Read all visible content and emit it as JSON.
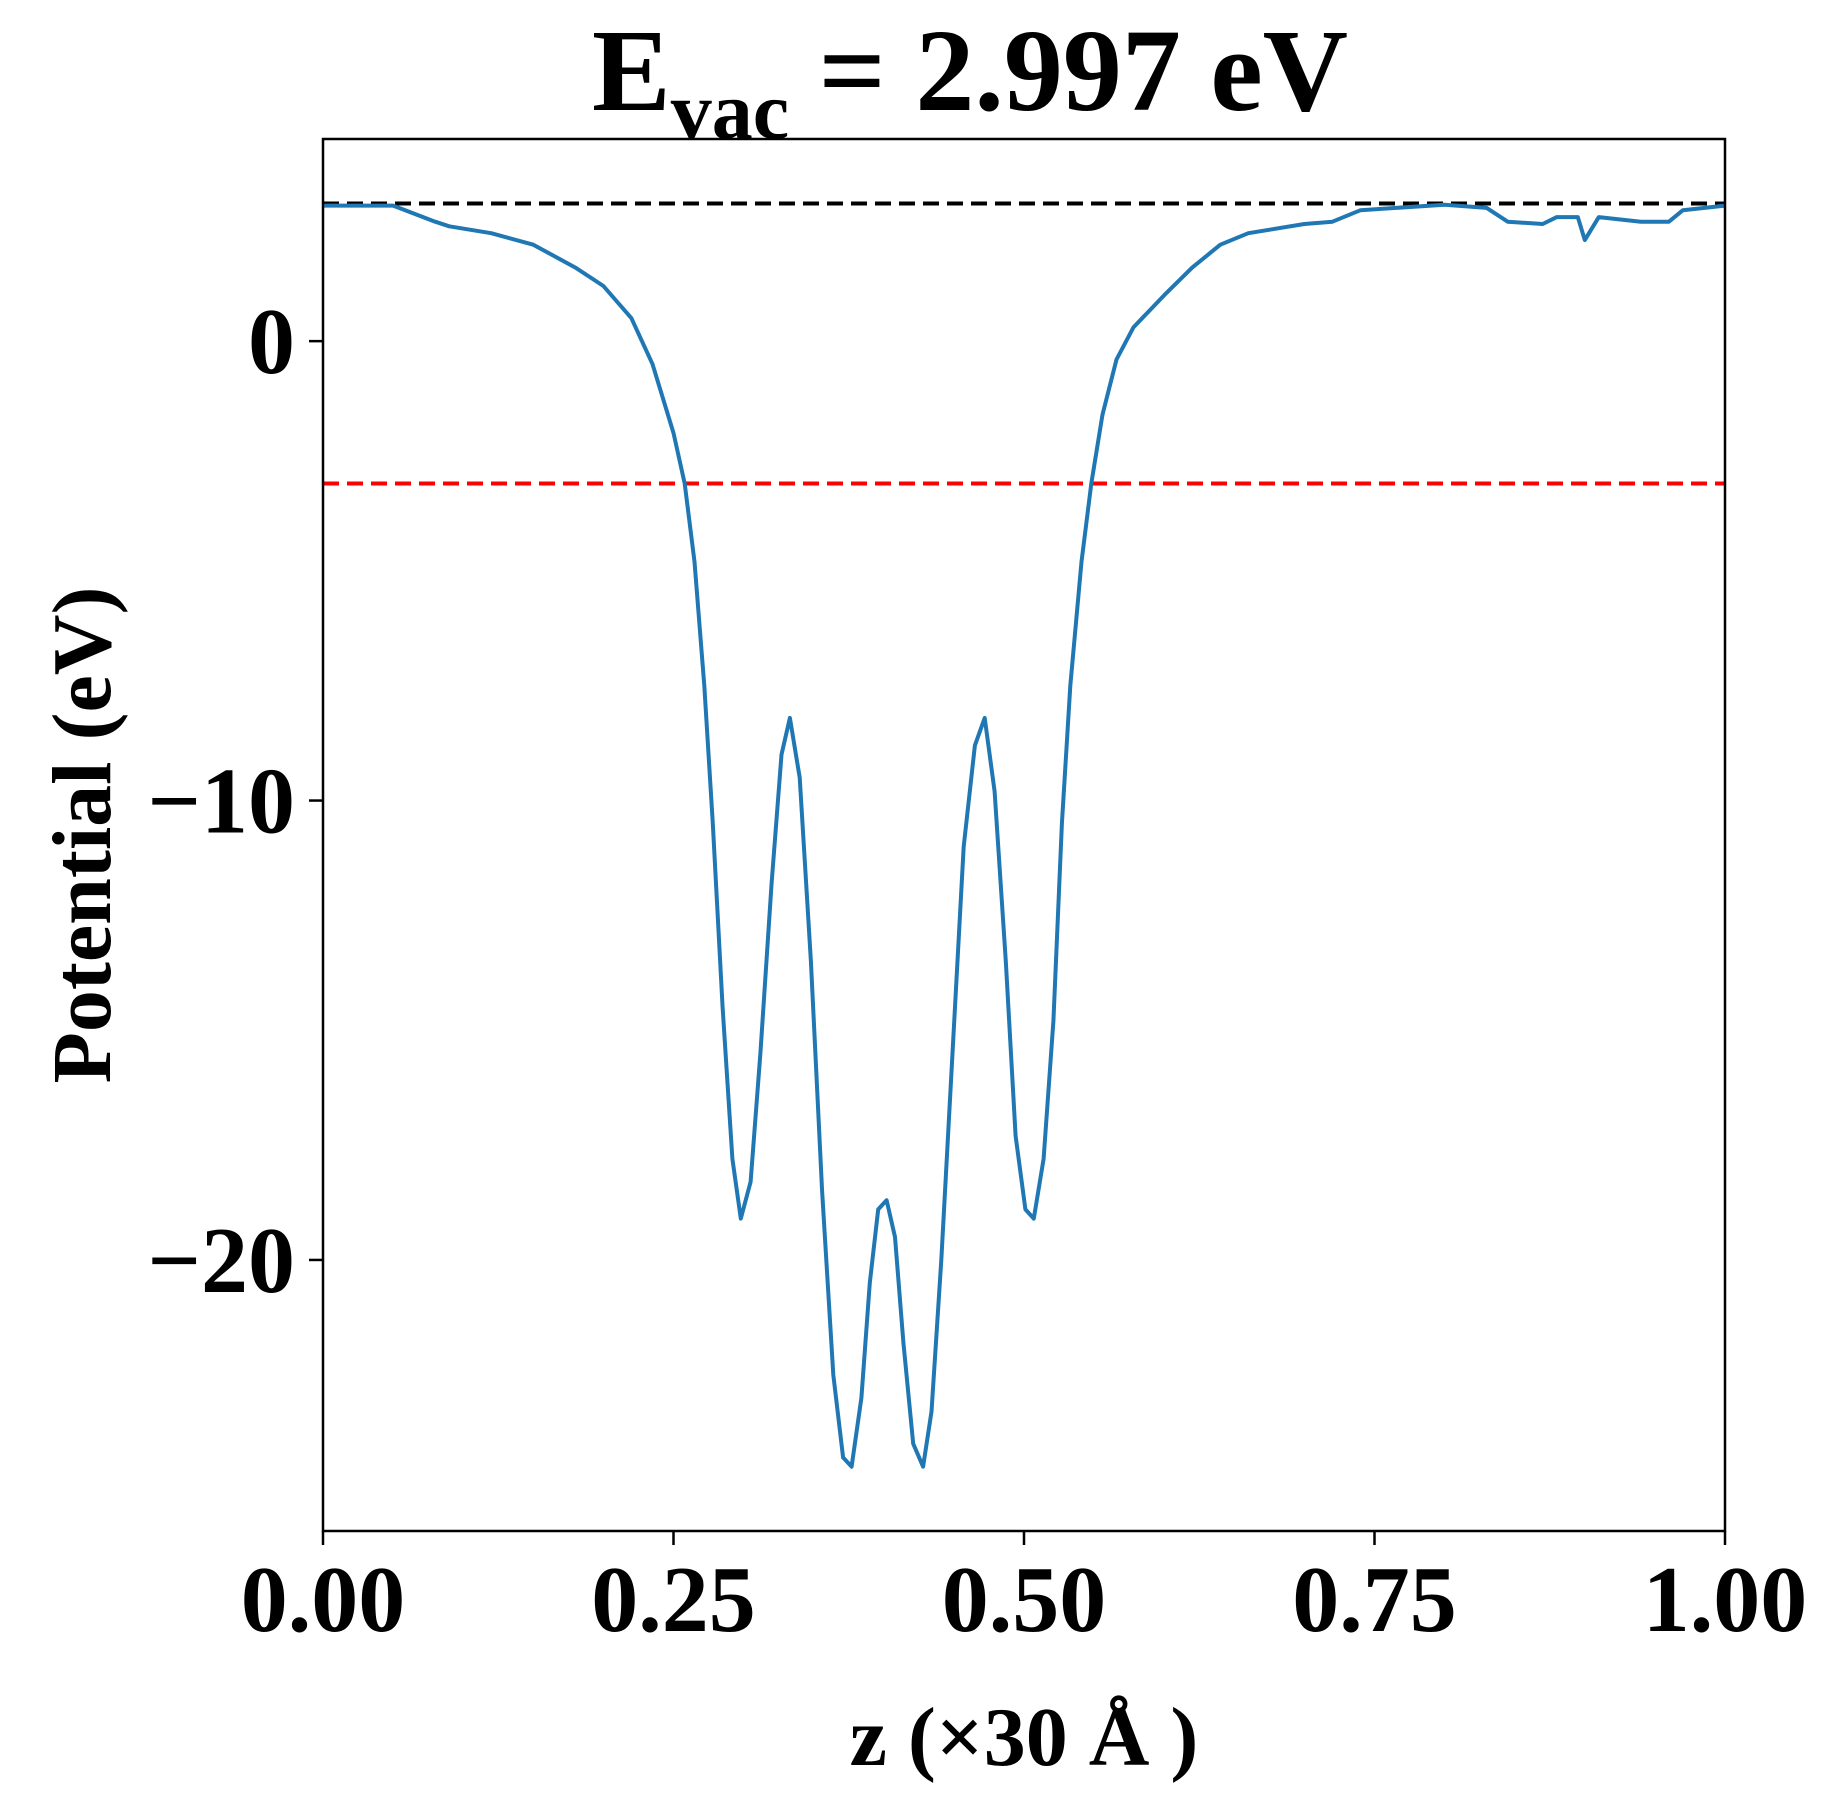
{
  "chart_data": {
    "type": "line",
    "title": {
      "main": "E",
      "sub": "vac",
      "rest": " = 2.997 eV"
    },
    "xlabel": "z (×30 Å )",
    "ylabel": "Potential (eV)",
    "xlim": [
      0,
      1
    ],
    "ylim": [
      -25.9,
      4.4
    ],
    "xticks": [
      {
        "value": 0,
        "label": "0.00"
      },
      {
        "value": 0.25,
        "label": "0.25"
      },
      {
        "value": 0.5,
        "label": "0.50"
      },
      {
        "value": 0.75,
        "label": "0.75"
      },
      {
        "value": 1,
        "label": "1.00"
      }
    ],
    "yticks": [
      {
        "value": -20,
        "label": "−20"
      },
      {
        "value": -10,
        "label": "−10"
      },
      0
    ],
    "hlines": [
      {
        "value": 2.997,
        "color": "#000000"
      },
      {
        "value": -3.1,
        "color": "#ff0000"
      }
    ],
    "series": [
      {
        "color": "#1f77b4",
        "x": [
          0,
          0.05,
          0.08,
          0.09,
          0.12,
          0.15,
          0.18,
          0.2,
          0.22,
          0.235,
          0.25,
          0.258,
          0.265,
          0.272,
          0.278,
          0.285,
          0.292,
          0.298,
          0.305,
          0.312,
          0.32,
          0.327,
          0.333,
          0.34,
          0.348,
          0.356,
          0.364,
          0.371,
          0.377,
          0.384,
          0.39,
          0.396,
          0.402,
          0.408,
          0.414,
          0.421,
          0.428,
          0.434,
          0.441,
          0.449,
          0.457,
          0.465,
          0.472,
          0.479,
          0.487,
          0.494,
          0.501,
          0.507,
          0.514,
          0.521,
          0.527,
          0.533,
          0.541,
          0.548,
          0.556,
          0.566,
          0.578,
          0.6,
          0.62,
          0.64,
          0.66,
          0.7,
          0.72,
          0.74,
          0.8,
          0.83,
          0.845,
          0.87,
          0.88,
          0.895,
          0.9,
          0.91,
          0.94,
          0.96,
          0.97,
          1.0
        ],
        "values": [
          2.95,
          2.95,
          2.6,
          2.5,
          2.35,
          2.1,
          1.6,
          1.2,
          0.5,
          -0.5,
          -2.0,
          -3.1,
          -4.8,
          -7.5,
          -10.5,
          -14.5,
          -17.8,
          -19.1,
          -18.3,
          -15.5,
          -11.8,
          -9.0,
          -8.2,
          -9.5,
          -13.5,
          -18.5,
          -22.5,
          -24.3,
          -24.5,
          -23.0,
          -20.5,
          -18.9,
          -18.7,
          -19.5,
          -21.8,
          -24.0,
          -24.5,
          -23.3,
          -20.0,
          -15.5,
          -11.0,
          -8.8,
          -8.2,
          -9.8,
          -13.5,
          -17.3,
          -18.9,
          -19.1,
          -17.8,
          -14.8,
          -10.5,
          -7.5,
          -4.8,
          -3.1,
          -1.6,
          -0.4,
          0.3,
          1.0,
          1.6,
          2.1,
          2.35,
          2.55,
          2.6,
          2.85,
          2.97,
          2.9,
          2.6,
          2.55,
          2.7,
          2.7,
          2.2,
          2.7,
          2.6,
          2.6,
          2.85,
          2.95
        ]
      }
    ]
  }
}
